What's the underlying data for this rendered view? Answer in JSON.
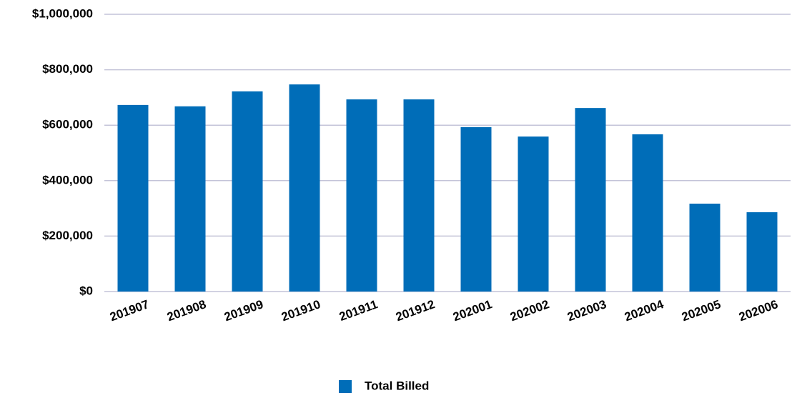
{
  "chart_data": {
    "type": "bar",
    "categories": [
      "201907",
      "201908",
      "201909",
      "201910",
      "201911",
      "201912",
      "202001",
      "202002",
      "202003",
      "202004",
      "202005",
      "202006"
    ],
    "series": [
      {
        "name": "Total Billed",
        "color": "#006db8",
        "values": [
          673000,
          668000,
          722000,
          747000,
          693000,
          693000,
          593000,
          559000,
          662000,
          567000,
          317000,
          286000
        ]
      }
    ],
    "ylim": [
      0,
      1000000
    ],
    "yticks": [
      {
        "value": 0,
        "label": "$0"
      },
      {
        "value": 200000,
        "label": "$200,000"
      },
      {
        "value": 400000,
        "label": "$400,000"
      },
      {
        "value": 600000,
        "label": "$600,000"
      },
      {
        "value": 800000,
        "label": "$800,000"
      },
      {
        "value": 1000000,
        "label": "$1,000,000"
      }
    ],
    "grid": true,
    "legend": "bottom"
  }
}
